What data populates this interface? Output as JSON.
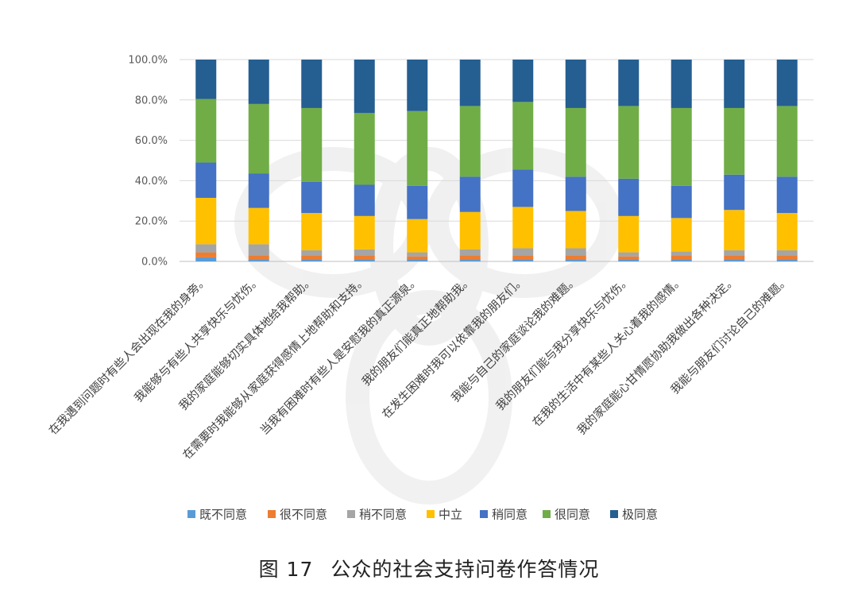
{
  "caption": {
    "number": "图 17",
    "text": "公众的社会支持问卷作答情况"
  },
  "chart_data": {
    "type": "bar",
    "stacked": true,
    "percent": true,
    "ylim": [
      0,
      100
    ],
    "yticks": [
      "0.0%",
      "20.0%",
      "40.0%",
      "60.0%",
      "80.0%",
      "100.0%"
    ],
    "grid": true,
    "legend_position": "bottom",
    "categories": [
      "在我遇到问题时有些人会出现在我的身旁。",
      "我能够与有些人共享快乐与忧伤。",
      "我的家庭能够切实具体地给我帮助。",
      "在需要时我能够从家庭获得感情上地帮助和支持。",
      "当我有困难时有些人是安慰我的真正源泉。",
      "我的朋友们能真正地帮助我。",
      "在发生困难时我可以依靠我的朋友们。",
      "我能与自己的家庭谈论我的难题。",
      "我的朋友们能与我分享快乐与忧伤。",
      "在我的生活中有某些人关心着我的感情。",
      "我的家庭能心甘情愿协助我做出各种决定。",
      "我能与朋友们讨论自己的难题。"
    ],
    "series": [
      {
        "name": "既不同意",
        "color": "#5B9BD5",
        "values": [
          2.0,
          1.0,
          1.0,
          1.0,
          1.0,
          1.0,
          1.0,
          1.0,
          1.0,
          1.0,
          1.0,
          1.0
        ]
      },
      {
        "name": "很不同意",
        "color": "#ED7D31",
        "values": [
          2.5,
          2.0,
          2.0,
          2.0,
          1.5,
          2.0,
          2.0,
          2.0,
          1.5,
          2.0,
          2.0,
          2.0
        ]
      },
      {
        "name": "稍不同意",
        "color": "#A5A5A5",
        "values": [
          4.0,
          5.5,
          2.5,
          3.0,
          2.0,
          3.0,
          3.5,
          3.5,
          2.0,
          2.0,
          2.5,
          2.5
        ]
      },
      {
        "name": "中立",
        "color": "#FFC000",
        "values": [
          23.0,
          18.0,
          18.5,
          16.5,
          16.5,
          18.5,
          20.5,
          18.5,
          18.0,
          16.5,
          20.0,
          18.5
        ]
      },
      {
        "name": "稍同意",
        "color": "#4472C4",
        "values": [
          17.5,
          17.0,
          15.5,
          15.5,
          16.5,
          17.5,
          18.5,
          17.0,
          18.5,
          16.0,
          17.5,
          18.0
        ]
      },
      {
        "name": "很同意",
        "color": "#70AD47",
        "values": [
          31.5,
          34.5,
          36.5,
          35.5,
          37.0,
          35.0,
          33.5,
          34.0,
          36.0,
          38.5,
          33.0,
          35.0
        ]
      },
      {
        "name": "极同意",
        "color": "#255E91",
        "values": [
          19.5,
          22.0,
          24.0,
          26.5,
          25.5,
          23.0,
          21.0,
          24.0,
          23.0,
          24.0,
          24.0,
          23.0
        ]
      }
    ]
  }
}
